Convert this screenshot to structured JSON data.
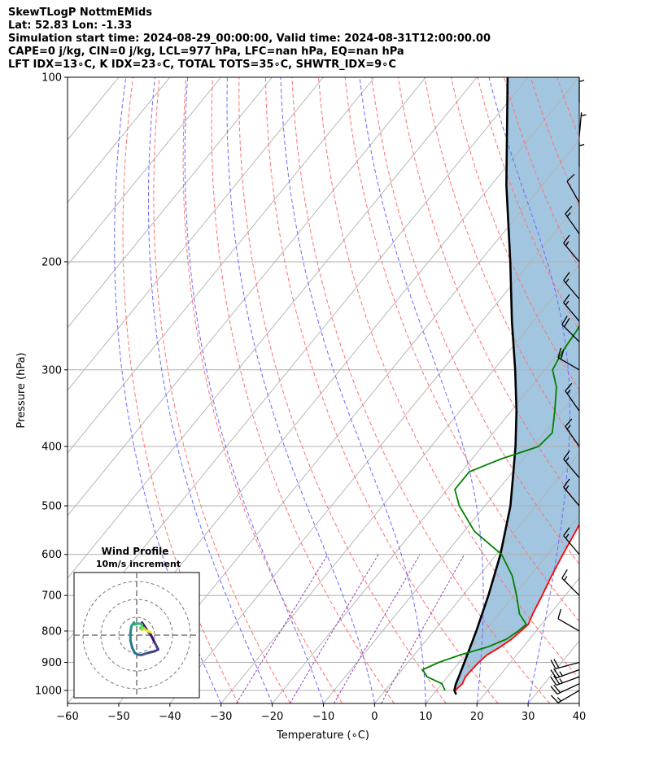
{
  "header": {
    "line1": "SkewTLogP NottmEMids",
    "line2": "Lat: 52.83   Lon: -1.33",
    "line3": "Simulation start time: 2024-08-29_00:00:00, Valid time: 2024-08-31T12:00:00.00",
    "line4": "CAPE=0 j/kg, CIN=0 j/kg, LCL=977 hPa, LFC=nan hPa, EQ=nan hPa",
    "line5": "LFT IDX=13∘C, K IDX=23∘C, TOTAL TOTS=35∘C, SHWTR_IDX=9∘C"
  },
  "chart_data": {
    "type": "line",
    "xlabel": "Temperature (∘C)",
    "ylabel": "Pressure (hPa)",
    "xlim": [
      -60,
      40
    ],
    "ylim": [
      1050,
      100
    ],
    "y_scale": "log",
    "x_ticks": [
      -60,
      -50,
      -40,
      -30,
      -20,
      -10,
      0,
      10,
      20,
      30,
      40
    ],
    "y_ticks": [
      100,
      200,
      300,
      400,
      500,
      600,
      700,
      800,
      900,
      1000
    ],
    "grid": true,
    "colors": {
      "temperature": "#ff0000",
      "dewpoint": "#008000",
      "parcel": "#000000",
      "shade": "#a3c6e0",
      "dry_adiabats": "#ff7070",
      "moist_adiabats": "#6a6aff",
      "mixing_ratio": "#9440b0",
      "isotherms": "#b0b0b0",
      "grid": "#b0b0b0"
    },
    "series": [],
    "temperature": [
      [
        1000,
        13.7
      ],
      [
        975,
        14.0
      ],
      [
        950,
        13.5
      ],
      [
        925,
        13.6
      ],
      [
        900,
        13.8
      ],
      [
        875,
        14.2
      ],
      [
        850,
        15.5
      ],
      [
        825,
        16.5
      ],
      [
        800,
        17.0
      ],
      [
        780,
        17.4
      ],
      [
        750,
        16.6
      ],
      [
        700,
        15.5
      ],
      [
        650,
        14.2
      ],
      [
        600,
        13.0
      ],
      [
        550,
        11.8
      ],
      [
        500,
        10.4
      ],
      [
        450,
        8.0
      ],
      [
        400,
        5.0
      ],
      [
        350,
        1.5
      ],
      [
        320,
        -2.5
      ],
      [
        300,
        -5.0
      ],
      [
        270,
        -9.5
      ],
      [
        250,
        -11.5
      ],
      [
        230,
        -14.5
      ],
      [
        220,
        -16.5
      ],
      [
        210,
        -17.0
      ],
      [
        200,
        -16.0
      ],
      [
        180,
        -13.5
      ],
      [
        170,
        -12.5
      ],
      [
        160,
        -12.5
      ],
      [
        150,
        -12.0
      ],
      [
        140,
        -12.0
      ],
      [
        130,
        -9.5
      ],
      [
        120,
        -8.0
      ],
      [
        110,
        -7.5
      ],
      [
        100,
        -8.0
      ]
    ],
    "dewpoint": [
      [
        1000,
        11.7
      ],
      [
        975,
        10.0
      ],
      [
        950,
        6.0
      ],
      [
        925,
        4.0
      ],
      [
        900,
        6.0
      ],
      [
        875,
        9.0
      ],
      [
        850,
        13.0
      ],
      [
        825,
        15.5
      ],
      [
        800,
        16.5
      ],
      [
        780,
        17.0
      ],
      [
        750,
        14.0
      ],
      [
        700,
        10.5
      ],
      [
        650,
        6.5
      ],
      [
        600,
        1.0
      ],
      [
        550,
        -8.0
      ],
      [
        500,
        -15.0
      ],
      [
        470,
        -18.5
      ],
      [
        440,
        -18.5
      ],
      [
        420,
        -14.5
      ],
      [
        400,
        -9.0
      ],
      [
        380,
        -8.5
      ],
      [
        350,
        -11.5
      ],
      [
        320,
        -15.0
      ],
      [
        300,
        -18.5
      ],
      [
        280,
        -19.5
      ],
      [
        260,
        -20.0
      ],
      [
        240,
        -21.0
      ],
      [
        220,
        -23.0
      ],
      [
        200,
        -24.5
      ],
      [
        185,
        -27.0
      ],
      [
        175,
        -27.0
      ],
      [
        165,
        -28.5
      ],
      [
        155,
        -30.5
      ],
      [
        150,
        -32.0
      ],
      [
        140,
        -30.5
      ],
      [
        120,
        -28.0
      ],
      [
        100,
        -22.5
      ]
    ],
    "parcel": [
      [
        1015,
        14.5
      ],
      [
        1000,
        13.5
      ],
      [
        977,
        12.8
      ],
      [
        950,
        12.2
      ],
      [
        900,
        11.0
      ],
      [
        850,
        9.7
      ],
      [
        800,
        8.3
      ],
      [
        700,
        5.0
      ],
      [
        600,
        0.8
      ],
      [
        500,
        -5.0
      ],
      [
        450,
        -9.0
      ],
      [
        400,
        -13.5
      ],
      [
        350,
        -19.0
      ],
      [
        300,
        -25.8
      ],
      [
        250,
        -34.2
      ],
      [
        200,
        -44.0
      ],
      [
        150,
        -57.0
      ],
      [
        100,
        -74.0
      ]
    ],
    "barbs": [
      {
        "p": 1000,
        "direction": 240,
        "speed_kt": 15
      },
      {
        "p": 975,
        "direction": 245,
        "speed_kt": 20
      },
      {
        "p": 950,
        "direction": 250,
        "speed_kt": 25
      },
      {
        "p": 925,
        "direction": 250,
        "speed_kt": 25
      },
      {
        "p": 900,
        "direction": 255,
        "speed_kt": 20
      },
      {
        "p": 800,
        "direction": 300,
        "speed_kt": 10
      },
      {
        "p": 700,
        "direction": 315,
        "speed_kt": 15
      },
      {
        "p": 600,
        "direction": 320,
        "speed_kt": 15
      },
      {
        "p": 500,
        "direction": 320,
        "speed_kt": 15
      },
      {
        "p": 450,
        "direction": 320,
        "speed_kt": 15
      },
      {
        "p": 400,
        "direction": 325,
        "speed_kt": 15
      },
      {
        "p": 350,
        "direction": 325,
        "speed_kt": 15
      },
      {
        "p": 300,
        "direction": 300,
        "speed_kt": 20
      },
      {
        "p": 270,
        "direction": 315,
        "speed_kt": 20
      },
      {
        "p": 250,
        "direction": 320,
        "speed_kt": 15
      },
      {
        "p": 230,
        "direction": 320,
        "speed_kt": 15
      },
      {
        "p": 200,
        "direction": 320,
        "speed_kt": 15
      },
      {
        "p": 180,
        "direction": 325,
        "speed_kt": 15
      },
      {
        "p": 160,
        "direction": 330,
        "speed_kt": 10
      },
      {
        "p": 140,
        "direction": 0,
        "speed_kt": 5
      },
      {
        "p": 125,
        "direction": 5,
        "speed_kt": 5
      },
      {
        "p": 110,
        "direction": 0,
        "speed_kt": 5
      }
    ]
  },
  "hodograph": {
    "title": "Wind Profile",
    "subtitle": "10m/s increment",
    "rings_ms": [
      10,
      20,
      30
    ],
    "range_ms": 35,
    "points": [
      [
        3.0,
        7.0
      ],
      [
        5.0,
        4.0
      ],
      [
        8.0,
        0.0
      ],
      [
        10.0,
        -4.0
      ],
      [
        12.0,
        -8.0
      ],
      [
        10.0,
        -9.0
      ],
      [
        6.0,
        -10.0
      ],
      [
        3.0,
        -11.0
      ],
      [
        1.0,
        -11.0
      ],
      [
        -1.0,
        -10.0
      ],
      [
        -2.5,
        -7.0
      ],
      [
        -3.5,
        -3.0
      ],
      [
        -3.5,
        1.0
      ],
      [
        -3.0,
        5.0
      ],
      [
        -1.5,
        7.0
      ],
      [
        -1.0,
        6.0
      ],
      [
        -0.5,
        6.0
      ],
      [
        1.0,
        6.5
      ],
      [
        3.0,
        6.0
      ],
      [
        3.0,
        5.0
      ],
      [
        2.0,
        4.0
      ],
      [
        3.0,
        3.0
      ],
      [
        4.0,
        4.0
      ],
      [
        5.0,
        3.0
      ],
      [
        6.0,
        2.5
      ],
      [
        7.0,
        2.0
      ],
      [
        8.0,
        1.5
      ]
    ]
  }
}
